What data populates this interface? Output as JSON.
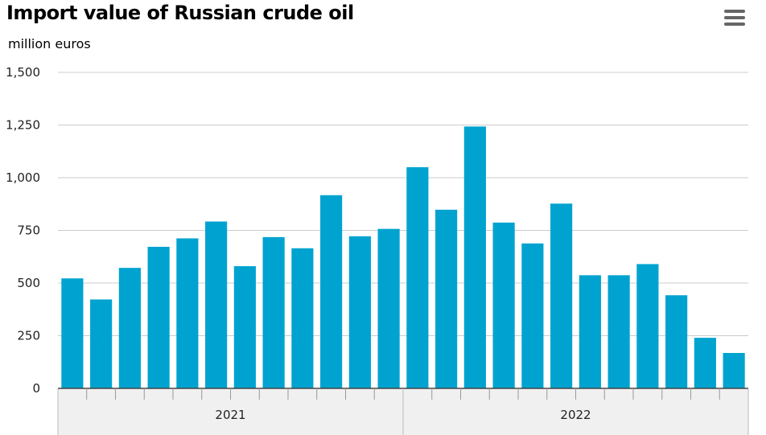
{
  "title": "Import value of Russian crude oil",
  "subtitle": "million euros",
  "menu_icon": "hamburger-menu-icon",
  "colors": {
    "bar": "#00a3d0",
    "grid": "#cccccc",
    "axis": "#444444",
    "group_band": "#f0f0f0"
  },
  "chart_data": {
    "type": "bar",
    "title": "Import value of Russian crude oil",
    "ylabel": "million euros",
    "ylim": [
      0,
      1500
    ],
    "y_ticks": [
      0,
      250,
      500,
      750,
      1000,
      1250,
      1500
    ],
    "y_tick_labels": [
      "0",
      "250",
      "500",
      "750",
      "1,000",
      "1,250",
      "1,500"
    ],
    "grid": true,
    "groups": [
      {
        "label": "2021",
        "count": 12
      },
      {
        "label": "2022",
        "count": 12
      }
    ],
    "values": [
      522,
      422,
      572,
      672,
      712,
      792,
      580,
      718,
      665,
      917,
      722,
      757,
      1050,
      848,
      1243,
      787,
      688,
      877,
      537,
      537,
      590,
      442,
      240,
      168
    ]
  }
}
